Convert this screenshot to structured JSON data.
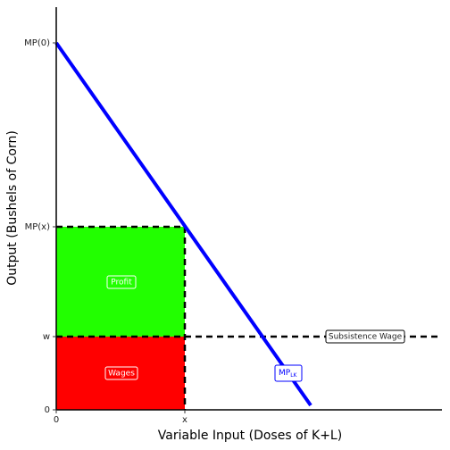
{
  "y_axis": {
    "title": "Output (Bushels of Corn)",
    "ticks": [
      "MP(0)",
      "MP(x)",
      "w",
      "0"
    ]
  },
  "x_axis": {
    "title": "Variable Input (Doses of K+L)",
    "ticks": [
      "0",
      "x"
    ]
  },
  "regions": {
    "profit": "Profit",
    "wages": "Wages"
  },
  "annotations": {
    "subsistence_wage": "Subsistence Wage",
    "curve": {
      "main": "MP",
      "subscript": "LK"
    }
  }
}
